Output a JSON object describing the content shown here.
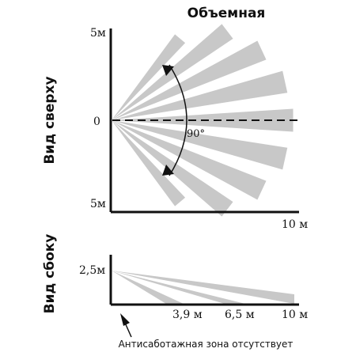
{
  "title": "Объемная",
  "top_view": {
    "label": "Вид сверху",
    "tick_top": "5м",
    "tick_mid": "0",
    "tick_bottom": "5м",
    "x_end": "10 м",
    "angle": "90°"
  },
  "side_view": {
    "label": "Вид сбоку",
    "height": "2,5м",
    "distance_1": "3,9 м",
    "distance_2": "6,5 м",
    "distance_3": "10 м"
  },
  "caption": "Антисаботажная зона отсутствует",
  "colors": {
    "ray": "#c8c8c8",
    "axis": "#111111"
  }
}
